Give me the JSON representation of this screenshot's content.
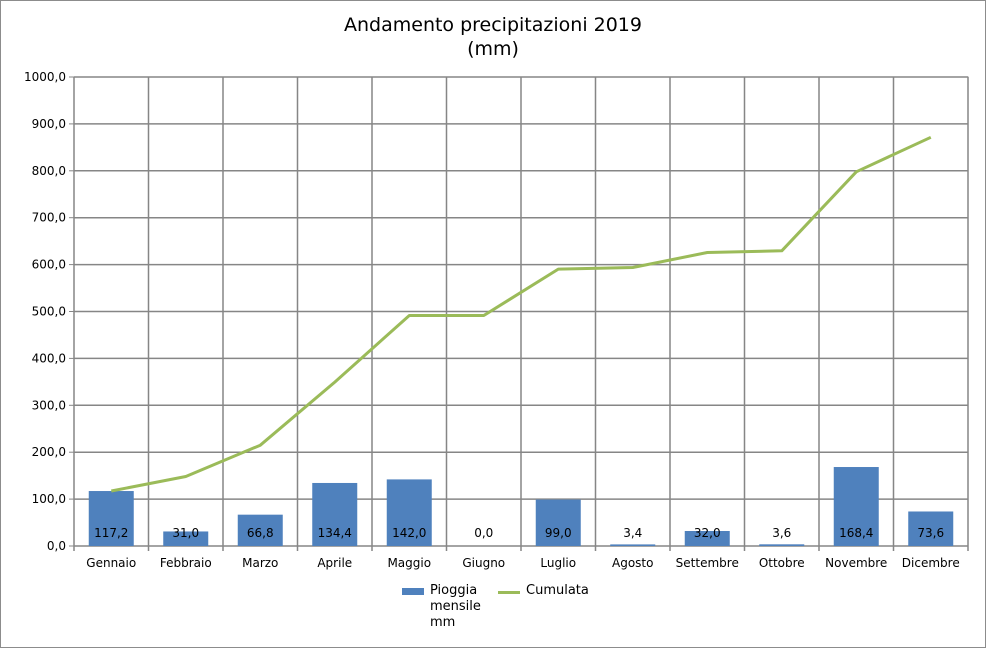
{
  "chart_data": {
    "type": "bar",
    "title": "Andamento precipitazioni 2019",
    "subtitle": "(mm)",
    "categories": [
      "Gennaio",
      "Febbraio",
      "Marzo",
      "Aprile",
      "Maggio",
      "Giugno",
      "Luglio",
      "Agosto",
      "Settembre",
      "Ottobre",
      "Novembre",
      "Dicembre"
    ],
    "series": [
      {
        "name": "Pioggia mensile mm",
        "type": "bar",
        "color": "#4f81bd",
        "values": [
          117.2,
          31.0,
          66.8,
          134.4,
          142.0,
          0.0,
          99.0,
          3.4,
          32.0,
          3.6,
          168.4,
          73.6
        ],
        "labels": [
          "117,2",
          "31,0",
          "66,8",
          "134,4",
          "142,0",
          "0,0",
          "99,0",
          "3,4",
          "32,0",
          "3,6",
          "168,4",
          "73,6"
        ]
      },
      {
        "name": "Cumulata",
        "type": "line",
        "color": "#9bbb59",
        "values": [
          117.2,
          148.2,
          215.0,
          349.4,
          491.4,
          491.4,
          590.4,
          593.8,
          625.8,
          629.4,
          797.8,
          871.4
        ]
      }
    ],
    "ylim": [
      0,
      1000
    ],
    "yticks": [
      "0,0",
      "100,0",
      "200,0",
      "300,0",
      "400,0",
      "500,0",
      "600,0",
      "700,0",
      "800,0",
      "900,0",
      "1000,0"
    ],
    "grid": true,
    "legend_position": "bottom"
  }
}
